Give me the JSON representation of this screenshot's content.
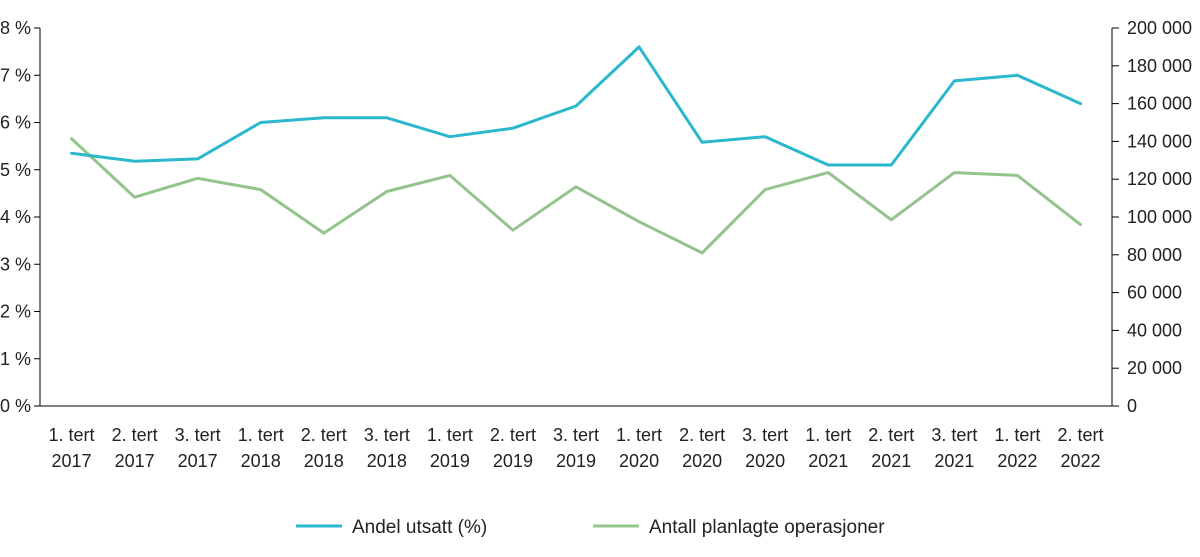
{
  "chart_data": {
    "type": "line",
    "categories": [
      [
        "1. tert",
        "2017"
      ],
      [
        "2. tert",
        "2017"
      ],
      [
        "3. tert",
        "2017"
      ],
      [
        "1. tert",
        "2018"
      ],
      [
        "2. tert",
        "2018"
      ],
      [
        "3. tert",
        "2018"
      ],
      [
        "1. tert",
        "2019"
      ],
      [
        "2. tert",
        "2019"
      ],
      [
        "3. tert",
        "2019"
      ],
      [
        "1. tert",
        "2020"
      ],
      [
        "2. tert",
        "2020"
      ],
      [
        "3. tert",
        "2020"
      ],
      [
        "1. tert",
        "2021"
      ],
      [
        "2. tert",
        "2021"
      ],
      [
        "3. tert",
        "2021"
      ],
      [
        "1. tert",
        "2022"
      ],
      [
        "2. tert",
        "2022"
      ]
    ],
    "left_axis": {
      "min": 0,
      "max": 8,
      "step": 1,
      "tick_labels": [
        "0 %",
        "1 %",
        "2 %",
        "3 %",
        "4 %",
        "5 %",
        "6 %",
        "7 %",
        "8 %"
      ]
    },
    "right_axis": {
      "min": 0,
      "max": 200000,
      "step": 20000,
      "tick_labels": [
        "0",
        "20 000",
        "40 000",
        "60 000",
        "80 000",
        "100 000",
        "120 000",
        "140 000",
        "160 000",
        "180 000",
        "200 000"
      ]
    },
    "series": [
      {
        "name": "Andel utsatt (%)",
        "axis": "left",
        "color": "#2bb7cc",
        "values": [
          5.35,
          5.18,
          5.23,
          6.0,
          6.1,
          6.1,
          5.7,
          5.88,
          6.35,
          7.6,
          5.58,
          5.7,
          5.1,
          5.1,
          6.88,
          7.0,
          6.4
        ]
      },
      {
        "name": "Antall planlagte operasjoner",
        "axis": "right",
        "color": "#93c48b",
        "values": [
          141500,
          110500,
          120500,
          114500,
          91500,
          113500,
          122000,
          93000,
          116000,
          97500,
          81000,
          114500,
          123500,
          98500,
          123500,
          122000,
          96000
        ]
      }
    ],
    "legend": "bottom-center"
  }
}
